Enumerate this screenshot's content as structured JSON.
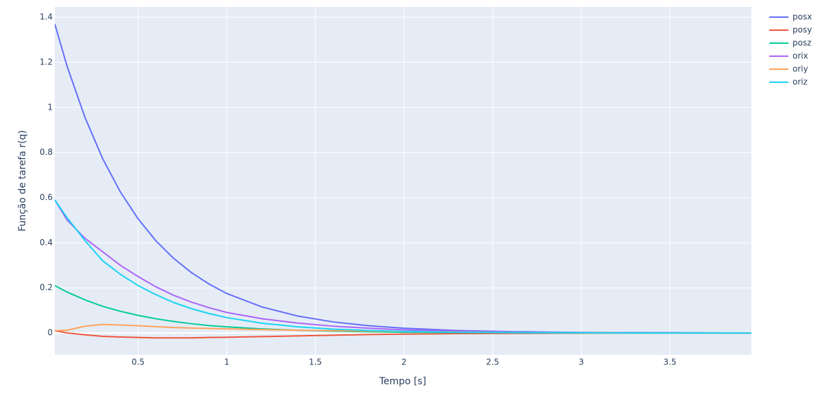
{
  "chart_data": {
    "type": "line",
    "x_label": "Tempo [s]",
    "y_label": "Função de tarefa r(q)",
    "x": [
      0.03,
      0.1,
      0.2,
      0.3,
      0.4,
      0.5,
      0.6,
      0.7,
      0.8,
      0.9,
      1.0,
      1.2,
      1.4,
      1.6,
      1.8,
      2.0,
      2.3,
      2.6,
      3.0,
      3.5,
      3.96
    ],
    "series": [
      {
        "name": "posx",
        "color": "#636efa",
        "values": [
          1.37,
          1.181,
          0.956,
          0.773,
          0.625,
          0.506,
          0.409,
          0.331,
          0.268,
          0.217,
          0.175,
          0.115,
          0.075,
          0.049,
          0.032,
          0.021,
          0.011,
          0.006,
          0.002,
          0.001,
          0
        ]
      },
      {
        "name": "posy",
        "color": "#EF553B",
        "values": [
          0.01,
          0,
          -0.008,
          -0.015,
          -0.018,
          -0.02,
          -0.022,
          -0.022,
          -0.022,
          -0.02,
          -0.019,
          -0.016,
          -0.013,
          -0.01,
          -0.007,
          -0.005,
          -0.003,
          -0.002,
          -0.001,
          0,
          0
        ]
      },
      {
        "name": "posz",
        "color": "#00cc96",
        "values": [
          0.21,
          0.181,
          0.147,
          0.118,
          0.096,
          0.078,
          0.063,
          0.051,
          0.041,
          0.033,
          0.027,
          0.018,
          0.012,
          0.008,
          0.005,
          0.003,
          0.002,
          0.001,
          0,
          0,
          0
        ]
      },
      {
        "name": "orix",
        "color": "#ab63fa",
        "values": [
          0.59,
          0.5,
          0.42,
          0.36,
          0.3,
          0.25,
          0.205,
          0.167,
          0.137,
          0.112,
          0.091,
          0.063,
          0.044,
          0.03,
          0.021,
          0.014,
          0.008,
          0.004,
          0.002,
          0.001,
          0
        ]
      },
      {
        "name": "oriy",
        "color": "#FFA15A",
        "values": [
          0.01,
          0.012,
          0.03,
          0.038,
          0.035,
          0.032,
          0.028,
          0.024,
          0.022,
          0.02,
          0.018,
          0.015,
          0.012,
          0.01,
          0.008,
          0.006,
          0.004,
          0.002,
          0.001,
          0,
          0
        ]
      },
      {
        "name": "oriz",
        "color": "#19d3f3",
        "values": [
          0.59,
          0.51,
          0.41,
          0.32,
          0.26,
          0.21,
          0.17,
          0.135,
          0.108,
          0.086,
          0.068,
          0.043,
          0.027,
          0.017,
          0.011,
          0.007,
          0.003,
          0.002,
          0.001,
          0,
          0
        ]
      }
    ],
    "xlim": [
      0.03,
      3.96
    ],
    "ylim": [
      -0.097,
      1.446
    ],
    "xticks": [
      0.5,
      1,
      1.5,
      2,
      2.5,
      3,
      3.5
    ],
    "yticks": [
      0,
      0.2,
      0.4,
      0.6,
      0.8,
      1,
      1.2,
      1.4
    ],
    "grid": true,
    "legend": "right"
  }
}
